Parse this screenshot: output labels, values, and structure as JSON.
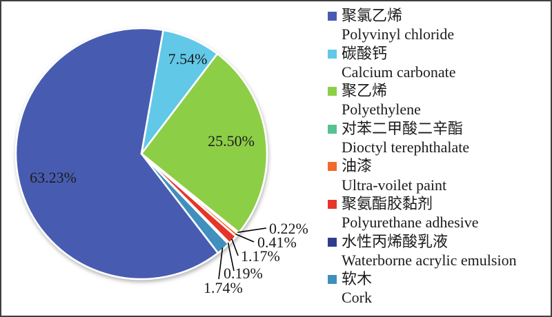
{
  "canvas": {
    "background": "#ffffff",
    "border_color": "#3f3f3f"
  },
  "chart_data": {
    "type": "pie",
    "title": "",
    "direction": "clockwise",
    "rotation_deg": 142.4,
    "legend_position": "right",
    "slices": [
      {
        "label_zh": "聚氯乙烯",
        "label_en": "Polyvinyl chloride",
        "value": 63.23,
        "pct_label": "63.23%",
        "color": "#475CB0",
        "label_placement": "inside"
      },
      {
        "label_zh": "碳酸钙",
        "label_en": "Calcium carbonate",
        "value": 7.54,
        "pct_label": "7.54%",
        "color": "#62C8E8",
        "label_placement": "inside"
      },
      {
        "label_zh": "聚乙烯",
        "label_en": "Polyethylene",
        "value": 25.5,
        "pct_label": "25.50%",
        "color": "#8DCE47",
        "label_placement": "inside"
      },
      {
        "label_zh": "对苯二甲酸二辛酯",
        "label_en": "Dioctyl terephthalate",
        "value": 0.22,
        "pct_label": "0.22%",
        "color": "#55C28F",
        "label_placement": "outside"
      },
      {
        "label_zh": "油漆",
        "label_en": "Ultra-voilet paint",
        "value": 0.41,
        "pct_label": "0.41%",
        "color": "#F2692C",
        "label_placement": "outside"
      },
      {
        "label_zh": "聚氨酯胶黏剂",
        "label_en": "Polyurethane adhesive",
        "value": 1.17,
        "pct_label": "1.17%",
        "color": "#E5362B",
        "label_placement": "outside"
      },
      {
        "label_zh": "水性丙烯酸乳液",
        "label_en": "Waterborne acrylic emulsion",
        "value": 0.19,
        "pct_label": "0.19%",
        "color": "#303D8D",
        "label_placement": "outside"
      },
      {
        "label_zh": "软木",
        "label_en": "Cork",
        "value": 1.74,
        "pct_label": "1.74%",
        "color": "#3F8FBE",
        "label_placement": "outside"
      }
    ]
  }
}
